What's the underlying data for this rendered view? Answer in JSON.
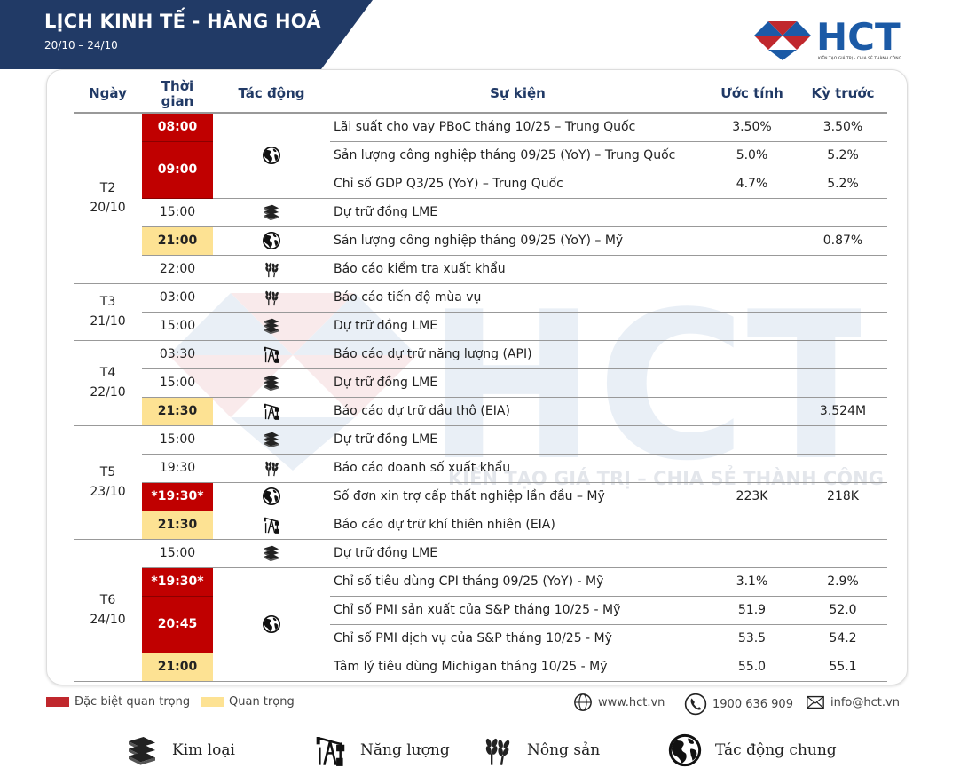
{
  "header": {
    "title": "LỊCH KINH TẾ - HÀNG HOÁ",
    "date_range": "20/10 – 24/10"
  },
  "logo": {
    "text": "HCT",
    "tagline": "KIẾN TẠO GIÁ TRỊ - CHIA SẺ THÀNH CÔNG"
  },
  "watermark": {
    "text": "KIẾN TẠO GIÁ TRỊ – CHIA SẺ THÀNH CÔNG"
  },
  "colors": {
    "navy": "#213a66",
    "red": "#c00000",
    "yellow": "#fde293",
    "logo_blue": "#1b5aa6",
    "logo_red": "#c0282d"
  },
  "columns": [
    "Ngày",
    "Thời gian",
    "Tác động",
    "Sự kiện",
    "Ước tính",
    "Kỳ trước"
  ],
  "days": [
    {
      "day": "T2",
      "date": "20/10",
      "rows": [
        {
          "time": "08:00",
          "level": "red",
          "icon": "globe-icon",
          "icon_span": 3,
          "event": "Lãi suất cho vay PBoC tháng 10/25 – Trung Quốc",
          "forecast": "3.50%",
          "previous": "3.50%"
        },
        {
          "time": "09:00",
          "level": "red",
          "time_span": 2,
          "event": "Sản lượng công nghiệp tháng 09/25 (YoY) – Trung Quốc",
          "forecast": "5.0%",
          "previous": "5.2%"
        },
        {
          "event": "Chỉ số GDP Q3/25 (YoY) – Trung Quốc",
          "forecast": "4.7%",
          "previous": "5.2%"
        },
        {
          "time": "15:00",
          "icon": "metal-icon",
          "event": "Dự trữ đồng LME",
          "forecast": "",
          "previous": ""
        },
        {
          "time": "21:00",
          "level": "yellow",
          "icon": "globe-icon",
          "event": "Sản lượng công nghiệp tháng 09/25 (YoY) – Mỹ",
          "forecast": "",
          "previous": "0.87%"
        },
        {
          "time": "22:00",
          "icon": "wheat-icon",
          "event": "Báo cáo kiểm tra xuất khẩu",
          "forecast": "",
          "previous": ""
        }
      ]
    },
    {
      "day": "T3",
      "date": "21/10",
      "rows": [
        {
          "time": "03:00",
          "icon": "wheat-icon",
          "event": "Báo cáo tiến độ mùa vụ",
          "forecast": "",
          "previous": ""
        },
        {
          "time": "15:00",
          "icon": "metal-icon",
          "event": "Dự trữ đồng LME",
          "forecast": "",
          "previous": ""
        }
      ]
    },
    {
      "day": "T4",
      "date": "22/10",
      "rows": [
        {
          "time": "03:30",
          "icon": "oil-pump-icon",
          "event": "Báo cáo dự trữ năng lượng (API)",
          "forecast": "",
          "previous": ""
        },
        {
          "time": "15:00",
          "icon": "metal-icon",
          "event": "Dự trữ đồng LME",
          "forecast": "",
          "previous": ""
        },
        {
          "time": "21:30",
          "level": "yellow",
          "icon": "oil-pump-icon",
          "event": "Báo cáo dự trữ dầu thô (EIA)",
          "forecast": "",
          "previous": "3.524M"
        }
      ]
    },
    {
      "day": "T5",
      "date": "23/10",
      "rows": [
        {
          "time": "15:00",
          "icon": "metal-icon",
          "event": "Dự trữ đồng LME",
          "forecast": "",
          "previous": ""
        },
        {
          "time": "19:30",
          "icon": "wheat-icon",
          "event": "Báo cáo doanh số xuất khẩu",
          "forecast": "",
          "previous": ""
        },
        {
          "time": "*19:30*",
          "level": "red",
          "icon": "globe-icon",
          "event": "Số đơn xin trợ cấp thất nghiệp lần đầu – Mỹ",
          "forecast": "223K",
          "previous": "218K"
        },
        {
          "time": "21:30",
          "level": "yellow",
          "icon": "oil-pump-icon",
          "event": "Báo cáo dự trữ khí thiên nhiên (EIA)",
          "forecast": "",
          "previous": ""
        }
      ]
    },
    {
      "day": "T6",
      "date": "24/10",
      "rows": [
        {
          "time": "15:00",
          "icon": "metal-icon",
          "event": "Dự trữ đồng LME",
          "forecast": "",
          "previous": ""
        },
        {
          "time": "*19:30*",
          "level": "red",
          "icon": "globe-icon",
          "icon_span": 4,
          "event": "Chỉ số tiêu dùng CPI tháng 09/25 (YoY) - Mỹ",
          "forecast": "3.1%",
          "previous": "2.9%"
        },
        {
          "time": "20:45",
          "level": "red",
          "time_span": 2,
          "event": "Chỉ số PMI sản xuất của S&P tháng 10/25 - Mỹ",
          "forecast": "51.9",
          "previous": "52.0"
        },
        {
          "event": "Chỉ số PMI dịch vụ của S&P tháng 10/25 - Mỹ",
          "forecast": "53.5",
          "previous": "54.2"
        },
        {
          "time": "21:00",
          "level": "yellow",
          "event": "Tâm lý tiêu dùng Michigan tháng 10/25 - Mỹ",
          "forecast": "55.0",
          "previous": "55.1"
        }
      ]
    }
  ],
  "legend": {
    "very_important": "Đặc biệt quan trọng",
    "important": "Quan trọng"
  },
  "contact": {
    "website": "www.hct.vn",
    "phone": "1900 636 909",
    "email": "info@hct.vn"
  },
  "icon_legend": [
    {
      "icon": "metal-icon",
      "label": "Kim loại"
    },
    {
      "icon": "oil-pump-icon",
      "label": "Năng lượng"
    },
    {
      "icon": "wheat-icon",
      "label": "Nông sản"
    },
    {
      "icon": "globe-icon",
      "label": "Tác động chung"
    }
  ]
}
